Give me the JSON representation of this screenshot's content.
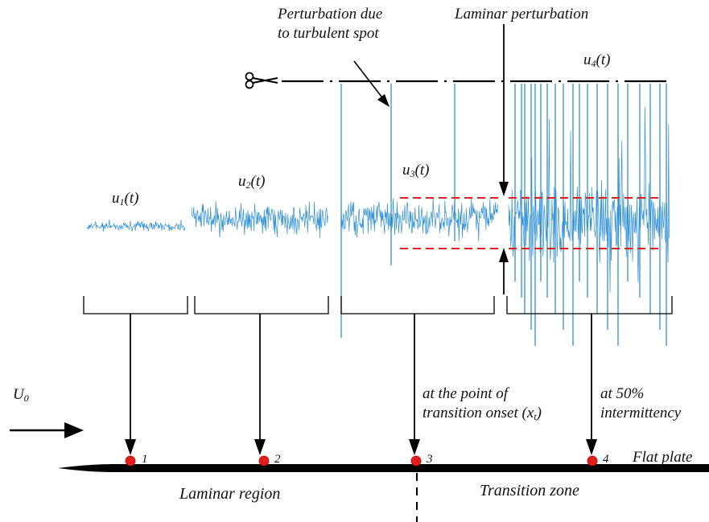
{
  "signals": {
    "u1": {
      "base": "u",
      "sub": "1",
      "suffix": "(t)"
    },
    "u2": {
      "base": "u",
      "sub": "2",
      "suffix": "(t)"
    },
    "u3": {
      "base": "u",
      "sub": "3",
      "suffix": "(t)"
    },
    "u4": {
      "base": "u",
      "sub": "4",
      "suffix": "(t)"
    }
  },
  "annotations": {
    "turbulent_spot_line1": "Perturbation due",
    "turbulent_spot_line2": "to turbulent spot",
    "laminar_perturbation": "Laminar perturbation",
    "onset_line1": "at the point of",
    "onset_line2": "transition onset (x",
    "onset_sub": "t",
    "onset_close": ")",
    "intermittency_line1": "at 50%",
    "intermittency_line2": "intermittency"
  },
  "freestream": {
    "base": "U",
    "sub": "0"
  },
  "plate_label": "Flat plate",
  "points": [
    "1",
    "2",
    "3",
    "4"
  ],
  "regions": {
    "laminar": "Laminar region",
    "transition": "Transition zone"
  },
  "colors": {
    "signal": "#2f8fd6",
    "threshold": "#e0201c",
    "point": "#e0201c",
    "ink": "#000000"
  }
}
